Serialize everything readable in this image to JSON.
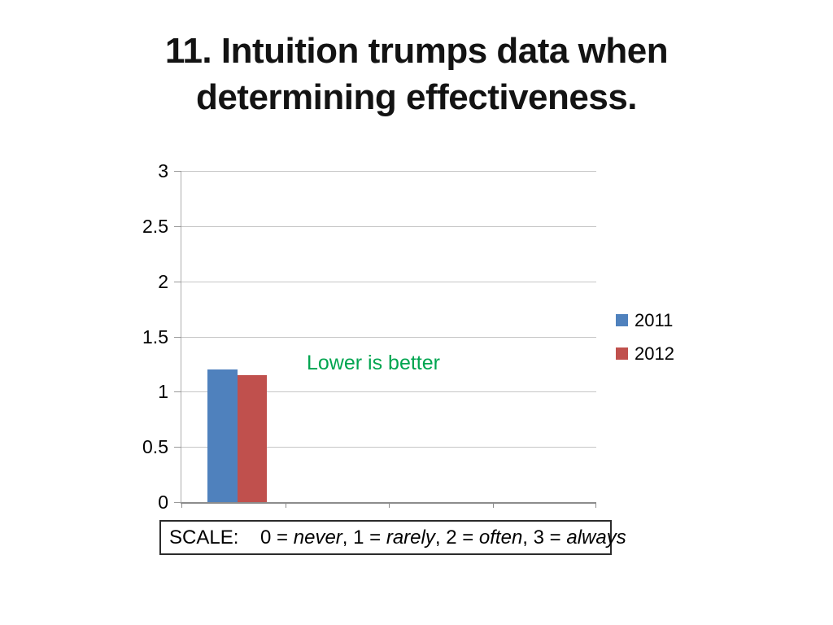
{
  "slide": {
    "title_line1": "11. Intuition trumps data when",
    "title_line2": "determining effectiveness."
  },
  "chart_data": {
    "type": "bar",
    "title": "11. Intuition trumps data when determining effectiveness.",
    "categories": [
      ""
    ],
    "series": [
      {
        "name": "2011",
        "color": "#4f81bd",
        "values": [
          1.2
        ]
      },
      {
        "name": "2012",
        "color": "#c0504d",
        "values": [
          1.15
        ]
      }
    ],
    "xlabel": "",
    "ylabel": "",
    "ylim": [
      0,
      3
    ],
    "ytick_step": 0.5,
    "ytick_labels": [
      "3",
      "2.5",
      "2",
      "1.5",
      "1",
      "0.5",
      "0"
    ],
    "grid": true,
    "legend_position": "right",
    "annotation": {
      "text": "Lower is better",
      "color": "#00a550"
    }
  },
  "scale_note": {
    "segments": [
      {
        "text": "SCALE:    0 = ",
        "italic": false
      },
      {
        "text": "never",
        "italic": true
      },
      {
        "text": ", 1 = ",
        "italic": false
      },
      {
        "text": "rarely",
        "italic": true
      },
      {
        "text": ", 2 = ",
        "italic": false
      },
      {
        "text": "often",
        "italic": true
      },
      {
        "text": ", 3 = ",
        "italic": false
      },
      {
        "text": "always",
        "italic": true
      }
    ]
  }
}
